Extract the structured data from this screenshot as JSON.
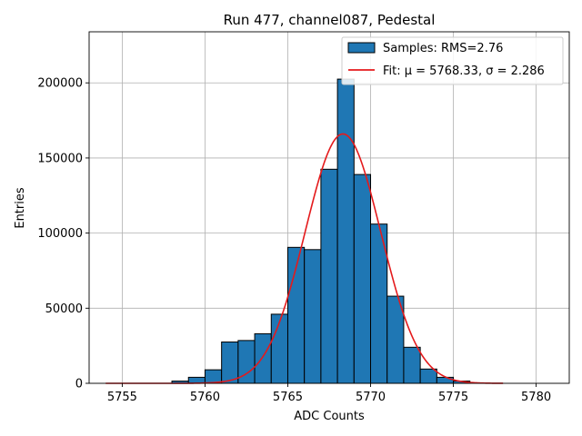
{
  "chart_data": {
    "type": "bar",
    "title": "Run 477, channel087, Pedestal",
    "xlabel": "ADC Counts",
    "ylabel": "Entries",
    "xlim": [
      5753,
      5782
    ],
    "ylim": [
      0,
      234000
    ],
    "grid": true,
    "legend_position": "top-right",
    "x_ticks": [
      5755,
      5760,
      5765,
      5770,
      5775,
      5780
    ],
    "y_ticks": [
      0,
      50000,
      100000,
      150000,
      200000
    ],
    "histogram": {
      "name": "Samples: RMS=2.76",
      "bin_width": 1,
      "bins": [
        {
          "x0": 5758,
          "x1": 5759,
          "count": 1500
        },
        {
          "x0": 5759,
          "x1": 5760,
          "count": 4000
        },
        {
          "x0": 5760,
          "x1": 5761,
          "count": 9000
        },
        {
          "x0": 5761,
          "x1": 5762,
          "count": 27500
        },
        {
          "x0": 5762,
          "x1": 5763,
          "count": 28500
        },
        {
          "x0": 5763,
          "x1": 5764,
          "count": 33000
        },
        {
          "x0": 5764,
          "x1": 5765,
          "count": 46000
        },
        {
          "x0": 5765,
          "x1": 5766,
          "count": 90500
        },
        {
          "x0": 5766,
          "x1": 5767,
          "count": 89000
        },
        {
          "x0": 5767,
          "x1": 5768,
          "count": 142500
        },
        {
          "x0": 5768,
          "x1": 5769,
          "count": 202500
        },
        {
          "x0": 5769,
          "x1": 5770,
          "count": 139000
        },
        {
          "x0": 5770,
          "x1": 5771,
          "count": 106000
        },
        {
          "x0": 5771,
          "x1": 5772,
          "count": 58000
        },
        {
          "x0": 5772,
          "x1": 5773,
          "count": 24000
        },
        {
          "x0": 5773,
          "x1": 5774,
          "count": 9500
        },
        {
          "x0": 5774,
          "x1": 5775,
          "count": 4000
        },
        {
          "x0": 5775,
          "x1": 5776,
          "count": 1500
        }
      ],
      "color": "#1f77b4",
      "edge_color": "#000000"
    },
    "fit": {
      "name": "Fit: μ = 5768.33, σ = 2.286",
      "type": "gaussian",
      "mu": 5768.33,
      "sigma": 2.286,
      "amplitude": 166000,
      "x_range": [
        5754,
        5778
      ],
      "color": "#e41a1c"
    }
  }
}
